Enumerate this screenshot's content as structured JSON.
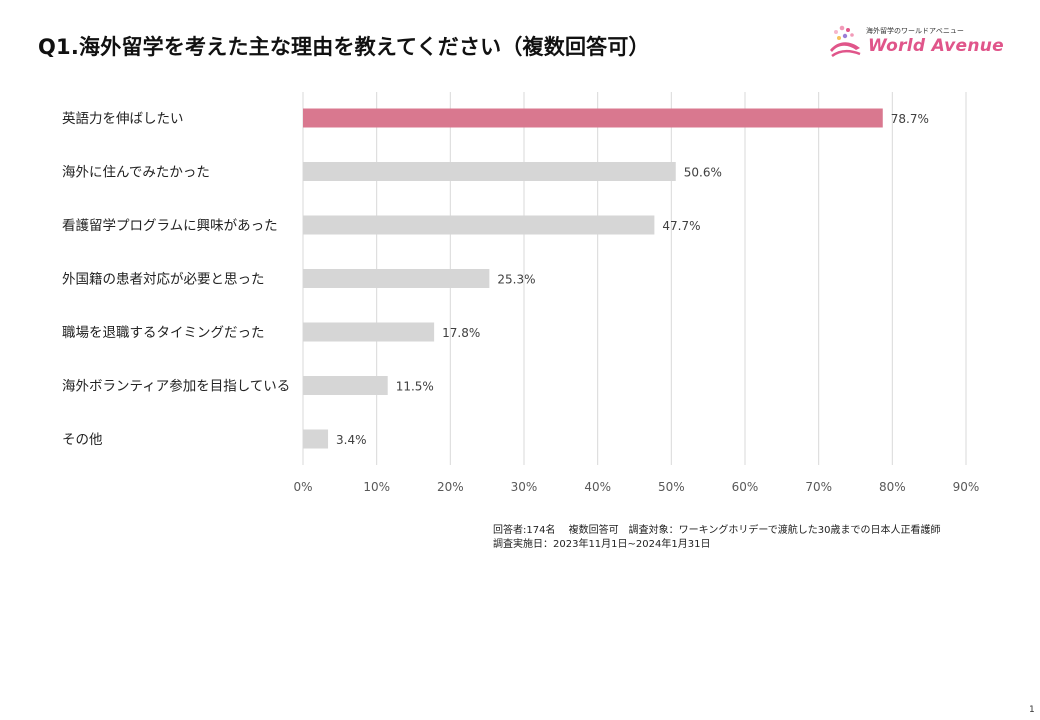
{
  "page": {
    "title": "Q1.海外留学を考えた主な理由を教えてください（複数回答可）",
    "page_number": "1"
  },
  "logo": {
    "tagline": "海外留学のワールドアベニュー",
    "name": "World Avenue",
    "accent_color": "#e0558a"
  },
  "notes": {
    "line1": "回答者:174名　 複数回答可　調査対象：ワーキングホリデーで渡航した30歳までの日本人正看護師",
    "line2": "調査実施日：2023年11月1日~2024年1月31日"
  },
  "chart_data": {
    "type": "bar",
    "orientation": "horizontal",
    "title": "Q1.海外留学を考えた主な理由を教えてください（複数回答可）",
    "categories": [
      "英語力を伸ばしたい",
      "海外に住んでみたかった",
      "看護留学プログラムに興味があった",
      "外国籍の患者対応が必要と思った",
      "職場を退職するタイミングだった",
      "海外ボランティア参加を目指している",
      "その他"
    ],
    "values": [
      78.7,
      50.6,
      47.7,
      25.3,
      17.8,
      11.5,
      3.4
    ],
    "value_labels": [
      "78.7%",
      "50.6%",
      "47.7%",
      "25.3%",
      "17.8%",
      "11.5%",
      "3.4%"
    ],
    "xlim": [
      0,
      90
    ],
    "xticks": [
      0,
      10,
      20,
      30,
      40,
      50,
      60,
      70,
      80,
      90
    ],
    "xtick_labels": [
      "0%",
      "10%",
      "20%",
      "30%",
      "40%",
      "50%",
      "60%",
      "70%",
      "80%",
      "90%"
    ],
    "xlabel": "",
    "ylabel": "",
    "grid": true,
    "legend": "none",
    "highlight_color": "#d9788f",
    "bar_color": "#d6d6d6",
    "grid_color": "#d9d9d9"
  }
}
